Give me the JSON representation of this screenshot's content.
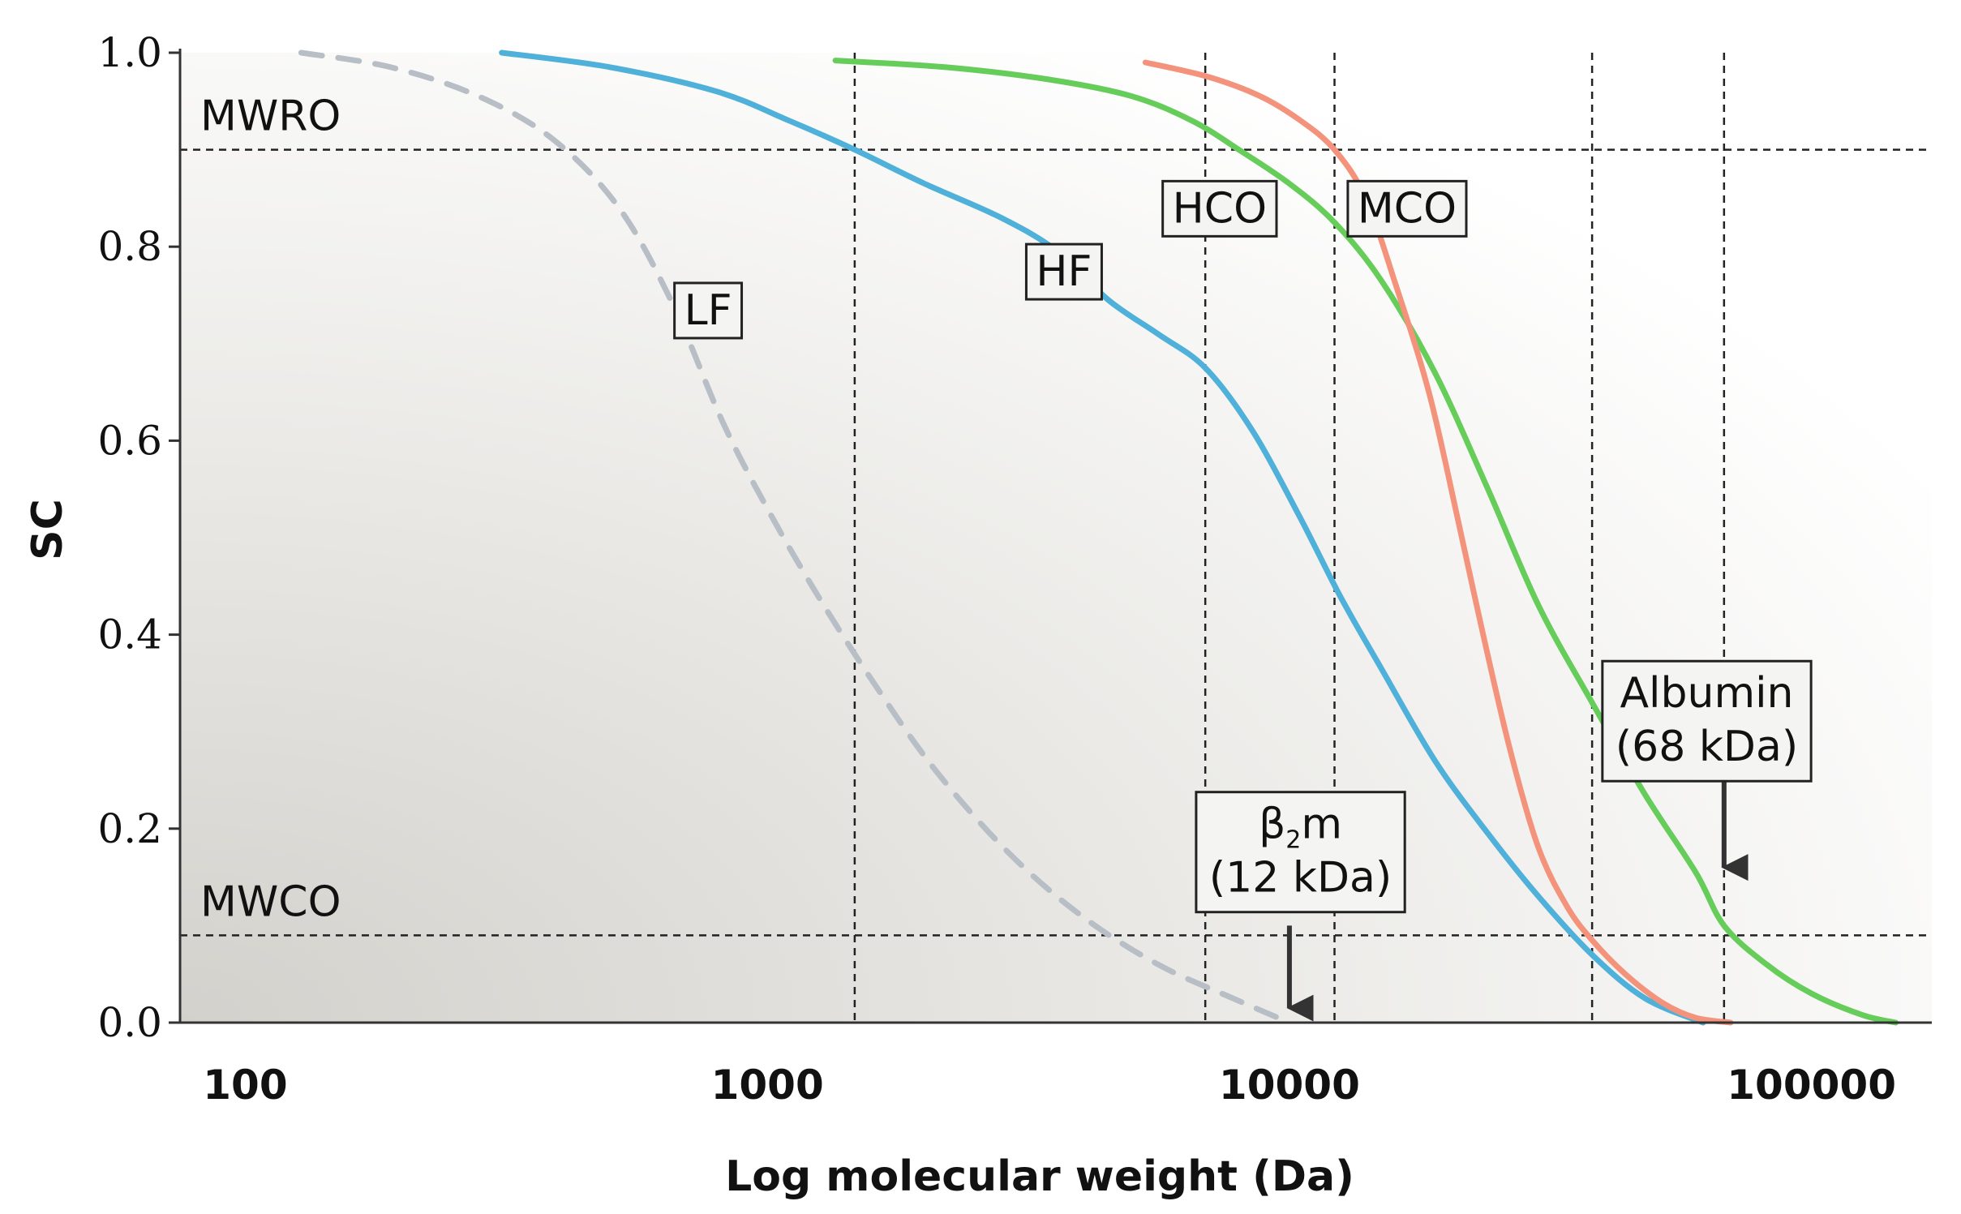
{
  "chart_data": {
    "type": "line",
    "xscale": "log",
    "xlim": [
      75,
      170000
    ],
    "ylim": [
      0.0,
      1.0
    ],
    "xlabel": "Log molecular weight (Da)",
    "ylabel": "SC",
    "xticks": [
      {
        "value": 100,
        "label": "100"
      },
      {
        "value": 1000,
        "label": "1000"
      },
      {
        "value": 10000,
        "label": "10000"
      },
      {
        "value": 100000,
        "label": "100000"
      }
    ],
    "yticks": [
      {
        "value": 0.0,
        "label": "0.0"
      },
      {
        "value": 0.2,
        "label": "0.2"
      },
      {
        "value": 0.4,
        "label": "0.4"
      },
      {
        "value": 0.6,
        "label": "0.6"
      },
      {
        "value": 0.8,
        "label": "0.8"
      },
      {
        "value": 1.0,
        "label": "1.0"
      }
    ],
    "thresholds": [
      {
        "name": "MWRO",
        "label": "MWRO",
        "value": 0.9
      },
      {
        "name": "MWCO",
        "label": "MWCO",
        "value": 0.09
      }
    ],
    "vlines": [
      1470,
      6900,
      12200,
      38000,
      68000
    ],
    "series": [
      {
        "name": "LF",
        "label": "LF",
        "color": "#b8bec5",
        "dashed": true,
        "label_point": [
          770,
          0.735
        ],
        "points": [
          [
            128,
            1.0
          ],
          [
            190,
            0.985
          ],
          [
            280,
            0.955
          ],
          [
            390,
            0.91
          ],
          [
            520,
            0.84
          ],
          [
            660,
            0.74
          ],
          [
            820,
            0.62
          ],
          [
            1000,
            0.53
          ],
          [
            1250,
            0.44
          ],
          [
            1600,
            0.35
          ],
          [
            2100,
            0.26
          ],
          [
            2900,
            0.175
          ],
          [
            4000,
            0.11
          ],
          [
            5600,
            0.06
          ],
          [
            7800,
            0.025
          ],
          [
            10000,
            0.0
          ]
        ]
      },
      {
        "name": "HF",
        "label": "HF",
        "color": "#4fb0d9",
        "dashed": false,
        "label_point": [
          3700,
          0.775
        ],
        "points": [
          [
            310,
            1.0
          ],
          [
            500,
            0.985
          ],
          [
            800,
            0.96
          ],
          [
            1100,
            0.93
          ],
          [
            1470,
            0.9
          ],
          [
            2000,
            0.865
          ],
          [
            2800,
            0.83
          ],
          [
            3600,
            0.795
          ],
          [
            4500,
            0.745
          ],
          [
            5600,
            0.71
          ],
          [
            6900,
            0.675
          ],
          [
            8500,
            0.61
          ],
          [
            10500,
            0.52
          ],
          [
            12500,
            0.44
          ],
          [
            15000,
            0.365
          ],
          [
            19000,
            0.27
          ],
          [
            24000,
            0.195
          ],
          [
            30000,
            0.13
          ],
          [
            38000,
            0.07
          ],
          [
            48000,
            0.025
          ],
          [
            62000,
            0.0
          ]
        ]
      },
      {
        "name": "HCO",
        "label": "HCO",
        "color": "#66cc5a",
        "dashed": false,
        "label_point": [
          7350,
          0.84
        ],
        "points": [
          [
            1350,
            0.992
          ],
          [
            2200,
            0.985
          ],
          [
            3500,
            0.972
          ],
          [
            5000,
            0.955
          ],
          [
            6500,
            0.93
          ],
          [
            8000,
            0.9
          ],
          [
            10000,
            0.865
          ],
          [
            12200,
            0.825
          ],
          [
            15000,
            0.765
          ],
          [
            19000,
            0.67
          ],
          [
            24000,
            0.55
          ],
          [
            30000,
            0.43
          ],
          [
            38000,
            0.33
          ],
          [
            48000,
            0.235
          ],
          [
            60000,
            0.155
          ],
          [
            68000,
            0.1
          ],
          [
            82000,
            0.06
          ],
          [
            100000,
            0.03
          ],
          [
            125000,
            0.008
          ],
          [
            145000,
            0.0
          ]
        ]
      },
      {
        "name": "MCO",
        "label": "MCO",
        "color": "#f4937b",
        "dashed": false,
        "label_point": [
          16800,
          0.84
        ],
        "points": [
          [
            5300,
            0.99
          ],
          [
            7000,
            0.975
          ],
          [
            8800,
            0.955
          ],
          [
            10500,
            0.93
          ],
          [
            12200,
            0.9
          ],
          [
            14000,
            0.85
          ],
          [
            16000,
            0.76
          ],
          [
            18500,
            0.65
          ],
          [
            21000,
            0.52
          ],
          [
            23500,
            0.4
          ],
          [
            26500,
            0.28
          ],
          [
            30000,
            0.18
          ],
          [
            34000,
            0.12
          ],
          [
            38000,
            0.085
          ],
          [
            44000,
            0.05
          ],
          [
            52000,
            0.02
          ],
          [
            60000,
            0.005
          ],
          [
            70000,
            0.0
          ]
        ]
      }
    ],
    "annotations": [
      {
        "name": "b2m",
        "line1_main": "β",
        "line1_sub": "2",
        "line1_rest": "m",
        "line2": "(12 kDa)",
        "arrow_x": 10000,
        "arrow_from_y": 0.1,
        "arrow_to_y": 0.005,
        "box_center": [
          10500,
          0.175
        ]
      },
      {
        "name": "albumin",
        "line1": "Albumin",
        "line2": "(68 kDa)",
        "arrow_x": 68000,
        "arrow_from_y": 0.255,
        "arrow_to_y": 0.15,
        "box_center": [
          63000,
          0.31
        ]
      }
    ]
  }
}
